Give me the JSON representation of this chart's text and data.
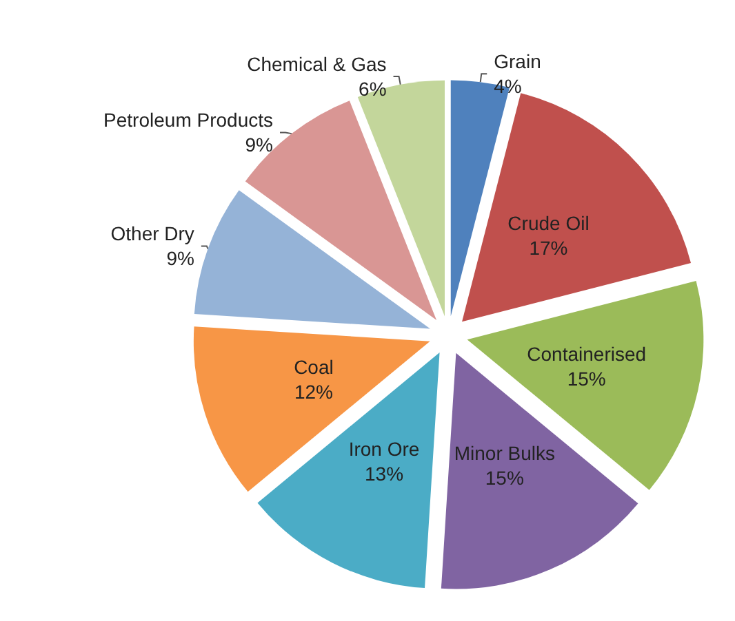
{
  "chart_data": {
    "type": "pie",
    "categories": [
      "Grain",
      "Crude Oil",
      "Containerised",
      "Minor Bulks",
      "Iron Ore",
      "Coal",
      "Other Dry",
      "Petroleum Products",
      "Chemical & Gas"
    ],
    "values": [
      4,
      17,
      15,
      15,
      13,
      12,
      9,
      9,
      6
    ],
    "value_labels": [
      "4%",
      "17%",
      "15%",
      "15%",
      "13%",
      "12%",
      "9%",
      "9%",
      "6%"
    ],
    "colors": [
      "#4f81bd",
      "#c0504d",
      "#9bbb59",
      "#8064a2",
      "#4bacc6",
      "#f79646",
      "#95b3d7",
      "#d99694",
      "#c3d69b"
    ],
    "legend": false
  }
}
